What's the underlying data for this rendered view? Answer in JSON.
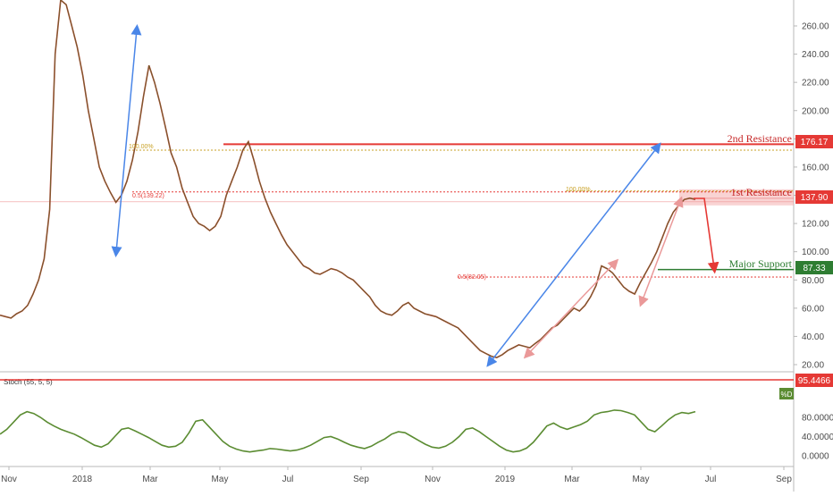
{
  "chart_data": {
    "type": "line",
    "title": "",
    "price_axis": {
      "ticks": [
        "260.00",
        "240.00",
        "220.00",
        "200.00",
        "180.00",
        "160.00",
        "140.00",
        "120.00",
        "100.00",
        "80.00",
        "60.00",
        "40.00",
        "20.00"
      ],
      "ylim": [
        10,
        280
      ]
    },
    "time_axis": {
      "labels": [
        "Nov",
        "2018",
        "Mar",
        "May",
        "Jul",
        "Sep",
        "Nov",
        "2019",
        "Mar",
        "May",
        "Jul",
        "Sep"
      ]
    },
    "series": [
      {
        "values": [
          55,
          54,
          53,
          56,
          58,
          62,
          70,
          80,
          95,
          130,
          240,
          285,
          275,
          260,
          245,
          225,
          200,
          180,
          160,
          150,
          142,
          135,
          140,
          150,
          165,
          185,
          210,
          232,
          220,
          205,
          188,
          170,
          160,
          145,
          135,
          125,
          120,
          118,
          115,
          118,
          125,
          140,
          150,
          160,
          172,
          178,
          165,
          150,
          138,
          128,
          120,
          112,
          105,
          100,
          95,
          90,
          88,
          85,
          84,
          86,
          88,
          87,
          85,
          82,
          80,
          76,
          72,
          68,
          62,
          58,
          56,
          55,
          58,
          62,
          64,
          60,
          58,
          56,
          55,
          54,
          52,
          50,
          48,
          46,
          42,
          38,
          34,
          30,
          28,
          26,
          25,
          27,
          30,
          32,
          34,
          33,
          32,
          35,
          38,
          42,
          46,
          48,
          52,
          56,
          60,
          58,
          62,
          68,
          76,
          90,
          88,
          85,
          80,
          75,
          72,
          70,
          78,
          85,
          92,
          100,
          110,
          120,
          128,
          133,
          137,
          138,
          137
        ]
      }
    ],
    "annotations": {
      "resistance2": {
        "label": "2nd Resistance",
        "value": "176.17",
        "level": 176.17
      },
      "resistance1": {
        "label": "1st Resistance",
        "value": "137.90",
        "level": 137.9
      },
      "support": {
        "label": "Major Support",
        "value": "87.33",
        "level": 87.33
      },
      "fib_left_100": {
        "label": "100.00%",
        "level": 172
      },
      "fib_left_50": {
        "label": "0.5(139.22)",
        "level": 139.22
      },
      "fib_right_100": {
        "label": "100.00%",
        "level": 143
      },
      "fib_right_50": {
        "label": "0.5(82.05)",
        "level": 82.05
      }
    },
    "stochastic": {
      "label": "Stoch (55, 5, 5)",
      "value_badge": "95.4466",
      "level": 95.4466,
      "percent_badge": "%D",
      "ticks": [
        "80.0000",
        "40.0000",
        "0.0000"
      ],
      "ylim": [
        -10,
        100
      ],
      "values": [
        45,
        55,
        70,
        85,
        92,
        88,
        80,
        70,
        62,
        55,
        50,
        45,
        38,
        30,
        22,
        18,
        25,
        40,
        55,
        58,
        52,
        45,
        38,
        30,
        22,
        18,
        20,
        28,
        48,
        72,
        75,
        60,
        45,
        30,
        20,
        14,
        10,
        8,
        10,
        12,
        15,
        14,
        12,
        10,
        12,
        16,
        22,
        30,
        38,
        40,
        35,
        28,
        22,
        18,
        15,
        20,
        28,
        35,
        45,
        50,
        48,
        40,
        32,
        24,
        18,
        16,
        20,
        28,
        40,
        55,
        58,
        50,
        40,
        30,
        20,
        12,
        8,
        10,
        16,
        28,
        45,
        62,
        68,
        60,
        55,
        60,
        65,
        72,
        85,
        90,
        92,
        95,
        94,
        90,
        85,
        70,
        55,
        50,
        62,
        75,
        85,
        90,
        88,
        92
      ]
    },
    "legend": "none",
    "grid": false
  }
}
